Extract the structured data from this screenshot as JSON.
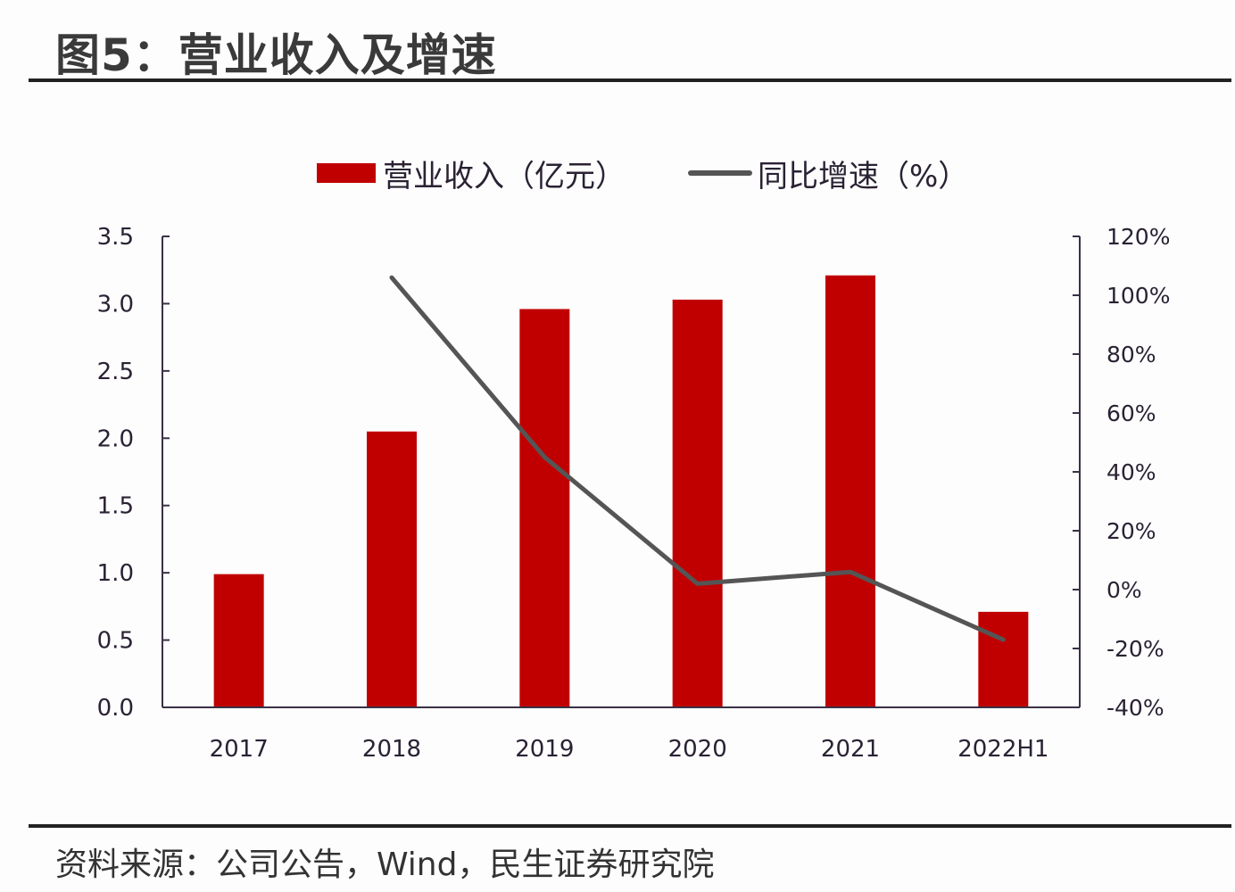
{
  "header": {
    "title": "图5：营业收入及增速"
  },
  "legend": {
    "bar_label": "营业收入（亿元）",
    "line_label": "同比增速（%）"
  },
  "footer": {
    "source": "资料来源：公司公告，Wind，民生证券研究院"
  },
  "colors": {
    "bar": "#c00000",
    "line": "#555555",
    "axis": "#3a3145",
    "rule": "#222222"
  },
  "chart_data": {
    "type": "bar",
    "title": "图5：营业收入及增速",
    "categories": [
      "2017",
      "2018",
      "2019",
      "2020",
      "2021",
      "2022H1"
    ],
    "series": [
      {
        "name": "营业收入（亿元）",
        "type": "bar",
        "axis": "left",
        "values": [
          0.99,
          2.05,
          2.96,
          3.03,
          3.21,
          0.71
        ]
      },
      {
        "name": "同比增速（%）",
        "type": "line",
        "axis": "right",
        "values": [
          null,
          106,
          45,
          2,
          6,
          -17
        ]
      }
    ],
    "left_axis": {
      "ylim": [
        0,
        3.5
      ],
      "ticks": [
        "0.0",
        "0.5",
        "1.0",
        "1.5",
        "2.0",
        "2.5",
        "3.0",
        "3.5"
      ]
    },
    "right_axis": {
      "ylim": [
        -40,
        120
      ],
      "ticks": [
        "-40%",
        "-20%",
        "0%",
        "20%",
        "40%",
        "60%",
        "80%",
        "100%",
        "120%"
      ]
    },
    "xlabel": "",
    "ylabel": "",
    "grid": false,
    "legend_position": "top"
  }
}
